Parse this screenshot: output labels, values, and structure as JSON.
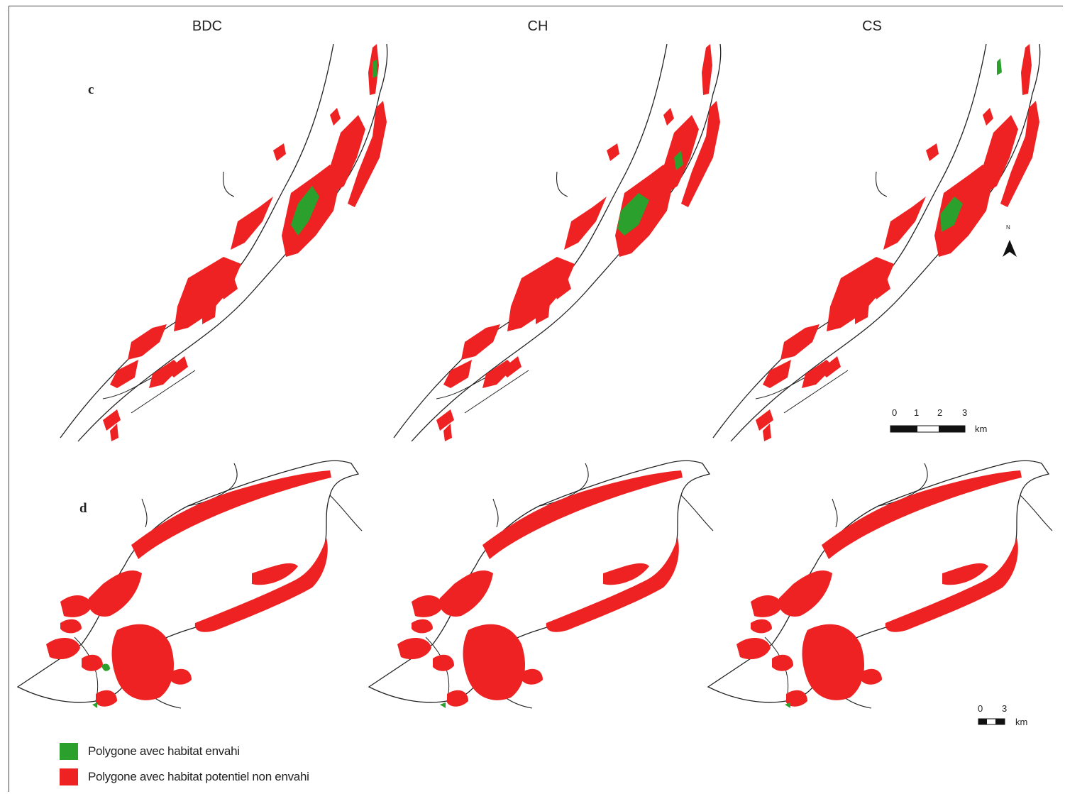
{
  "columns": [
    {
      "title": "BDC"
    },
    {
      "title": "CH"
    },
    {
      "title": "CS"
    }
  ],
  "rows": [
    {
      "label": "c"
    },
    {
      "label": "d"
    }
  ],
  "legend": [
    {
      "label": "Polygone avec habitat envahi",
      "color": "#2ca02c"
    },
    {
      "label": "Polygone avec habitat potentiel non envahi",
      "color": "#ee2222"
    }
  ],
  "scale_c": {
    "ticks": [
      "0",
      "1",
      "2",
      "3"
    ],
    "unit": "km"
  },
  "scale_d": {
    "ticks": [
      "0",
      "3"
    ],
    "unit": "km"
  },
  "north_arrow": {
    "label": "N"
  },
  "colors": {
    "invaded": "#2ca02c",
    "potential": "#ee2222",
    "outline": "#222222"
  }
}
